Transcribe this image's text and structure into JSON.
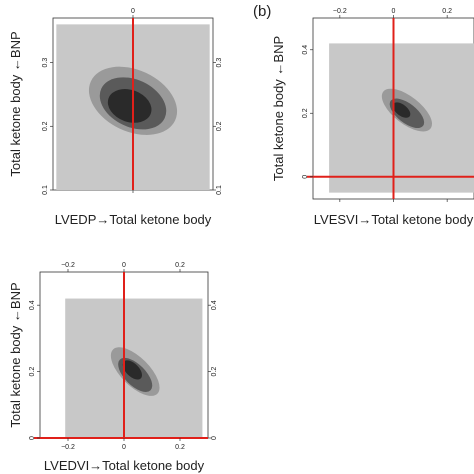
{
  "panel_label": "(b)",
  "chart_data": [
    {
      "type": "heatmap",
      "id": "panel-a",
      "xlabel": "LVEDP→Total ketone body",
      "ylabel": "Total ketone body ←BNP",
      "xlim": [
        -0.12,
        0.12
      ],
      "ylim": [
        0.1,
        0.37
      ],
      "xticks": [
        {
          "v": 0,
          "label": "0"
        }
      ],
      "yticks": [
        {
          "v": 0.1,
          "label": "0.1"
        },
        {
          "v": 0.2,
          "label": "0.2"
        },
        {
          "v": 0.3,
          "label": "0.3"
        }
      ],
      "x_tick_labels_shown": [
        false,
        true
      ],
      "y_tick_labels_shown": [
        true,
        true
      ],
      "bg_rect": {
        "x": [
          -0.115,
          0.115
        ],
        "y": [
          0.1,
          0.36
        ]
      },
      "vline": 0,
      "hline": null,
      "grid": false,
      "contours": [
        {
          "level": "outer",
          "color": "#9a9a9a",
          "cx": 0.0,
          "cy": 0.24,
          "rx": 0.068,
          "ry": 0.075,
          "rot": 25
        },
        {
          "level": "middle",
          "color": "#5a5a5a",
          "cx": 0.0,
          "cy": 0.236,
          "rx": 0.05,
          "ry": 0.058,
          "rot": 25
        },
        {
          "level": "inner",
          "color": "#2a2a2a",
          "cx": -0.005,
          "cy": 0.232,
          "rx": 0.03,
          "ry": 0.04,
          "rot": 20
        }
      ]
    },
    {
      "type": "heatmap",
      "id": "panel-b",
      "xlabel": "LVESVI→Total ketone body",
      "ylabel": "Total ketone body ←BNP",
      "xlim": [
        -0.3,
        0.3
      ],
      "ylim": [
        -0.07,
        0.5
      ],
      "xticks": [
        {
          "v": -0.2,
          "label": "−0.2"
        },
        {
          "v": 0,
          "label": "0"
        },
        {
          "v": 0.2,
          "label": "0.2"
        }
      ],
      "yticks": [
        {
          "v": 0,
          "label": "0"
        },
        {
          "v": 0.2,
          "label": "0.2"
        },
        {
          "v": 0.4,
          "label": "0.4"
        }
      ],
      "x_tick_labels_shown": [
        false,
        true
      ],
      "y_tick_labels_shown": [
        true,
        true
      ],
      "bg_rect": {
        "x": [
          -0.24,
          0.3
        ],
        "y": [
          -0.05,
          0.42
        ]
      },
      "vline": 0,
      "hline": 0,
      "grid": false,
      "contours": [
        {
          "level": "outer",
          "color": "#9a9a9a",
          "cx": 0.05,
          "cy": 0.21,
          "rx": 0.15,
          "ry": 0.055,
          "rot": 38
        },
        {
          "level": "middle",
          "color": "#5a5a5a",
          "cx": 0.05,
          "cy": 0.2,
          "rx": 0.1,
          "ry": 0.04,
          "rot": 38
        },
        {
          "level": "inner",
          "color": "#2a2a2a",
          "cx": 0.03,
          "cy": 0.21,
          "rx": 0.045,
          "ry": 0.025,
          "rot": 38
        }
      ]
    },
    {
      "type": "heatmap",
      "id": "panel-c",
      "xlabel": "LVEDVI→Total ketone body",
      "ylabel": "Total ketone body ←BNP",
      "xlim": [
        -0.3,
        0.3
      ],
      "ylim": [
        0.0,
        0.5
      ],
      "xticks": [
        {
          "v": -0.2,
          "label": "−0.2"
        },
        {
          "v": 0,
          "label": "0"
        },
        {
          "v": 0.2,
          "label": "0.2"
        }
      ],
      "yticks": [
        {
          "v": 0,
          "label": "0"
        },
        {
          "v": 0.2,
          "label": "0.2"
        },
        {
          "v": 0.4,
          "label": "0.4"
        }
      ],
      "x_tick_labels_shown": [
        true,
        true
      ],
      "y_tick_labels_shown": [
        true,
        true
      ],
      "bg_rect": {
        "x": [
          -0.21,
          0.28
        ],
        "y": [
          0.0,
          0.42
        ]
      },
      "vline": 0,
      "hline": 0,
      "grid": false,
      "contours": [
        {
          "level": "outer",
          "color": "#9a9a9a",
          "cx": 0.04,
          "cy": 0.2,
          "rx": 0.15,
          "ry": 0.055,
          "rot": 45
        },
        {
          "level": "middle",
          "color": "#5a5a5a",
          "cx": 0.04,
          "cy": 0.19,
          "rx": 0.1,
          "ry": 0.042,
          "rot": 45
        },
        {
          "level": "inner",
          "color": "#2a2a2a",
          "cx": 0.03,
          "cy": 0.205,
          "rx": 0.05,
          "ry": 0.028,
          "rot": 45
        }
      ]
    }
  ]
}
